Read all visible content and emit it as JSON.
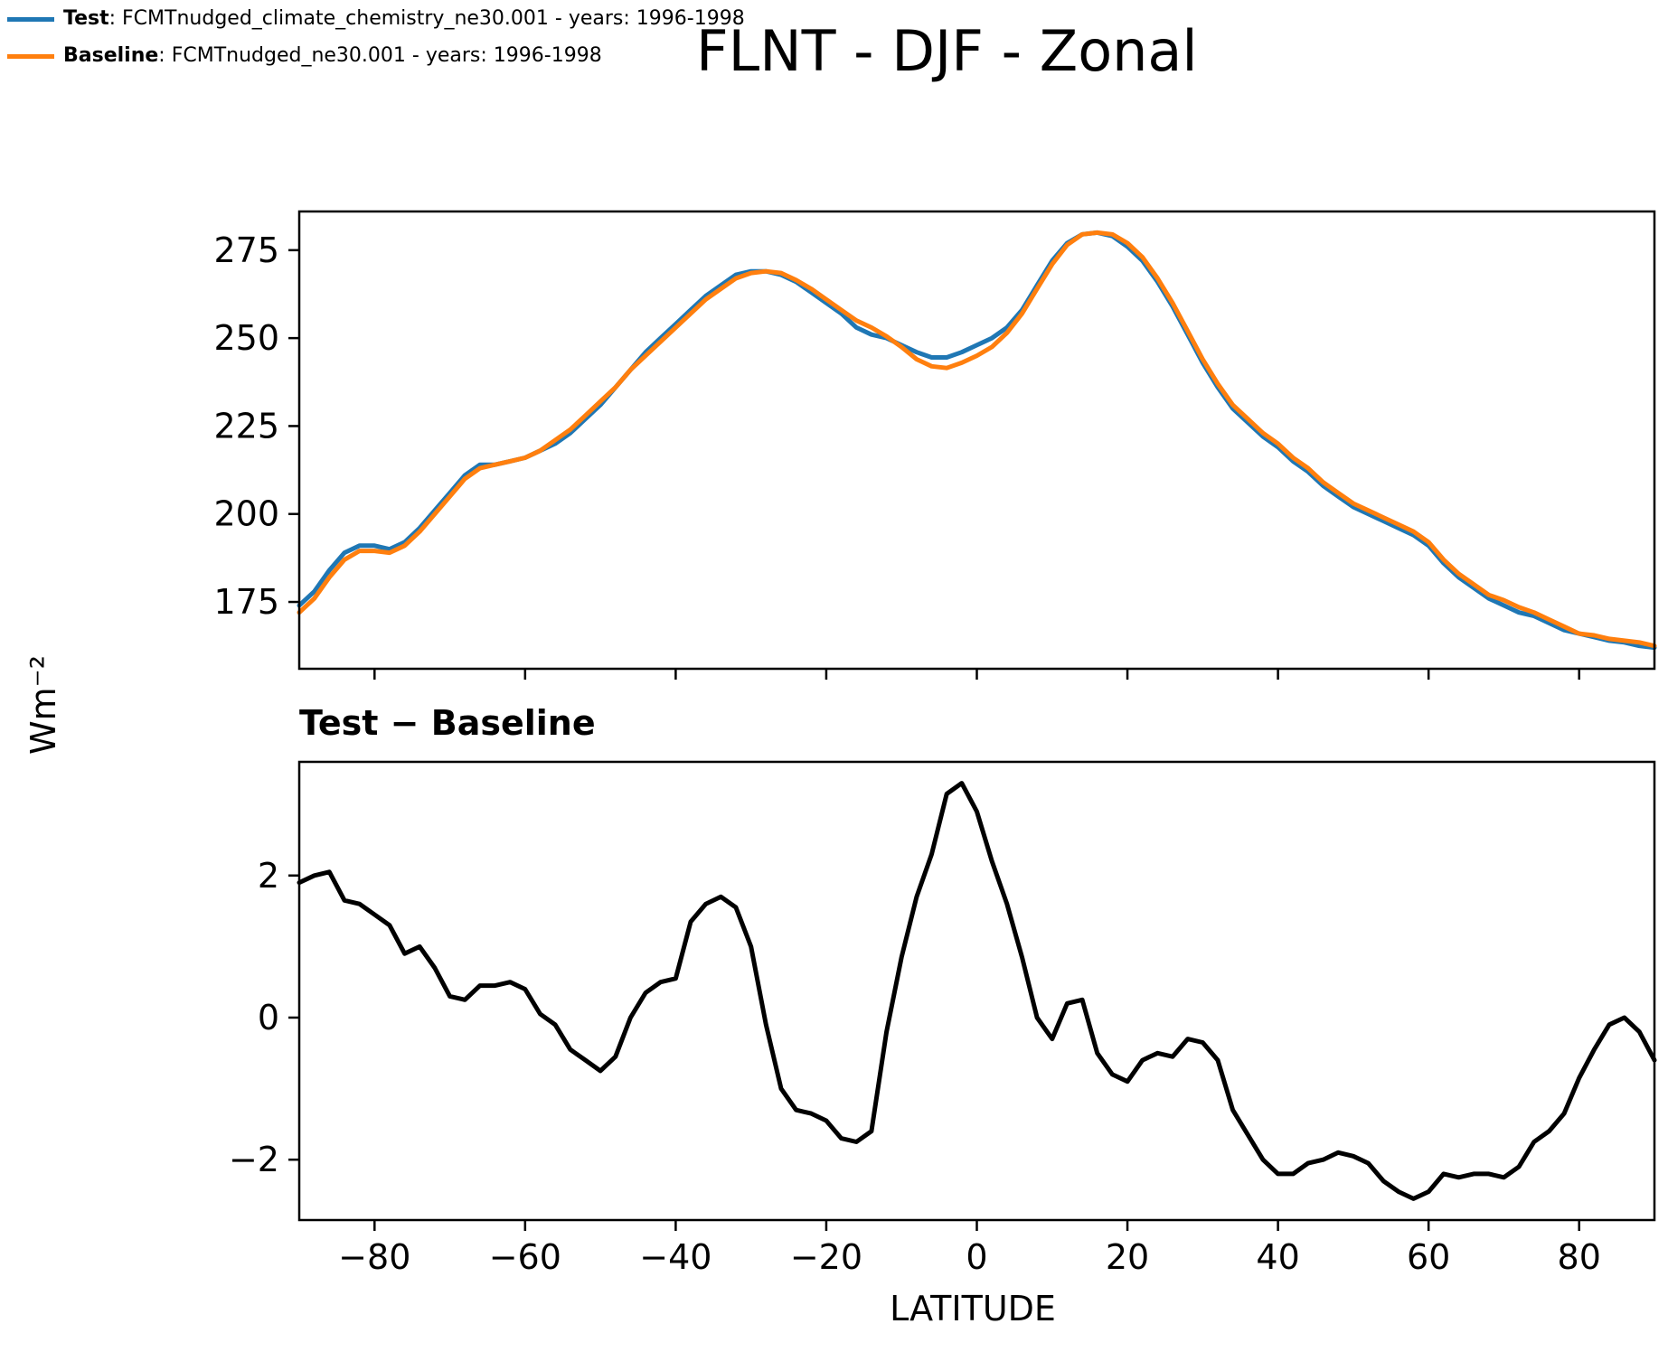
{
  "title": "FLNT - DJF - Zonal",
  "legend": [
    {
      "name": "Test",
      "text": ": FCMTnudged_climate_chemistry_ne30.001 - years: 1996-1998",
      "color": "#1f77b4"
    },
    {
      "name": "Baseline",
      "text": ": FCMTnudged_ne30.001 - years: 1996-1998",
      "color": "#ff7f0e"
    }
  ],
  "diff_title": "Test − Baseline",
  "ylabel": "Wm⁻²",
  "xlabel": "LATITUDE",
  "chart_data": [
    {
      "type": "line",
      "title": "",
      "xlabel": "LATITUDE",
      "ylabel": "Wm⁻²",
      "xlim": [
        -90,
        90
      ],
      "ylim": [
        156,
        286
      ],
      "yticks": [
        175,
        200,
        225,
        250,
        275
      ],
      "xticks": [
        -80,
        -60,
        -40,
        -20,
        0,
        20,
        40,
        60,
        80
      ],
      "series": [
        {
          "name": "Test",
          "color": "#1f77b4",
          "x": [
            -90,
            -88,
            -86,
            -84,
            -82,
            -80,
            -78,
            -76,
            -74,
            -72,
            -70,
            -68,
            -66,
            -64,
            -62,
            -60,
            -58,
            -56,
            -54,
            -52,
            -50,
            -48,
            -46,
            -44,
            -42,
            -40,
            -38,
            -36,
            -34,
            -32,
            -30,
            -28,
            -26,
            -24,
            -22,
            -20,
            -18,
            -16,
            -14,
            -12,
            -10,
            -8,
            -6,
            -4,
            -2,
            0,
            2,
            4,
            6,
            8,
            10,
            12,
            14,
            16,
            18,
            20,
            22,
            24,
            26,
            28,
            30,
            32,
            34,
            36,
            38,
            40,
            42,
            44,
            46,
            48,
            50,
            52,
            54,
            56,
            58,
            60,
            62,
            64,
            66,
            68,
            70,
            72,
            74,
            76,
            78,
            80,
            82,
            84,
            86,
            88,
            90
          ],
          "y": [
            174,
            178,
            184,
            189,
            191,
            191,
            190,
            192,
            196,
            201,
            206,
            211,
            214,
            214,
            215,
            216,
            218,
            220,
            223,
            227,
            231,
            236,
            241,
            246,
            250,
            254,
            258,
            262,
            265,
            268,
            269,
            269,
            268,
            266,
            263,
            260,
            257,
            253,
            251,
            250,
            248,
            246,
            244.5,
            244.5,
            246,
            248,
            250,
            253,
            258,
            265,
            272,
            277,
            279.5,
            280,
            279,
            276,
            272,
            266,
            259,
            251,
            243,
            236,
            230,
            226,
            222,
            219,
            215,
            212,
            208,
            205,
            202,
            200,
            198,
            196,
            194,
            191,
            186,
            182,
            179,
            176,
            174,
            172,
            171,
            169,
            167,
            166,
            165,
            164,
            163.5,
            162.5,
            162
          ]
        },
        {
          "name": "Baseline",
          "color": "#ff7f0e",
          "x": [
            -90,
            -88,
            -86,
            -84,
            -82,
            -80,
            -78,
            -76,
            -74,
            -72,
            -70,
            -68,
            -66,
            -64,
            -62,
            -60,
            -58,
            -56,
            -54,
            -52,
            -50,
            -48,
            -46,
            -44,
            -42,
            -40,
            -38,
            -36,
            -34,
            -32,
            -30,
            -28,
            -26,
            -24,
            -22,
            -20,
            -18,
            -16,
            -14,
            -12,
            -10,
            -8,
            -6,
            -4,
            -2,
            0,
            2,
            4,
            6,
            8,
            10,
            12,
            14,
            16,
            18,
            20,
            22,
            24,
            26,
            28,
            30,
            32,
            34,
            36,
            38,
            40,
            42,
            44,
            46,
            48,
            50,
            52,
            54,
            56,
            58,
            60,
            62,
            64,
            66,
            68,
            70,
            72,
            74,
            76,
            78,
            80,
            82,
            84,
            86,
            88,
            90
          ],
          "y": [
            172,
            176,
            182,
            187,
            189.5,
            189.5,
            189,
            191,
            195,
            200,
            205,
            210,
            213,
            214,
            215,
            216,
            218,
            221,
            224,
            228,
            232,
            236,
            241,
            245,
            249,
            253,
            257,
            261,
            264,
            267,
            268.5,
            269,
            268.5,
            266.5,
            264,
            261,
            258,
            255,
            253,
            250.5,
            247.5,
            244,
            242,
            241.5,
            243,
            245,
            247.5,
            251.5,
            257,
            264,
            271,
            276.5,
            279.5,
            280,
            279.5,
            277,
            273,
            267,
            260,
            252,
            244,
            237,
            231,
            227,
            223,
            220,
            216,
            213,
            209,
            206,
            203,
            201,
            199,
            197,
            195,
            192,
            187,
            183,
            180,
            177,
            175.5,
            173.5,
            172,
            170,
            168,
            166,
            165.5,
            164.5,
            164,
            163.5,
            162.5
          ]
        }
      ]
    },
    {
      "type": "line",
      "title": "Test − Baseline",
      "xlabel": "LATITUDE",
      "ylabel": "Wm⁻²",
      "xlim": [
        -90,
        90
      ],
      "ylim": [
        -2.85,
        3.6
      ],
      "yticks": [
        -2,
        0,
        2
      ],
      "xticks": [
        -80,
        -60,
        -40,
        -20,
        0,
        20,
        40,
        60,
        80
      ],
      "series": [
        {
          "name": "Test − Baseline",
          "color": "#000000",
          "x": [
            -90,
            -88,
            -86,
            -84,
            -82,
            -80,
            -78,
            -76,
            -74,
            -72,
            -70,
            -68,
            -66,
            -64,
            -62,
            -60,
            -58,
            -56,
            -54,
            -52,
            -50,
            -48,
            -46,
            -44,
            -42,
            -40,
            -38,
            -36,
            -34,
            -32,
            -30,
            -28,
            -26,
            -24,
            -22,
            -20,
            -18,
            -16,
            -14,
            -12,
            -10,
            -8,
            -6,
            -4,
            -2,
            0,
            2,
            4,
            6,
            8,
            10,
            12,
            14,
            16,
            18,
            20,
            22,
            24,
            26,
            28,
            30,
            32,
            34,
            36,
            38,
            40,
            42,
            44,
            46,
            48,
            50,
            52,
            54,
            56,
            58,
            60,
            62,
            64,
            66,
            68,
            70,
            72,
            74,
            76,
            78,
            80,
            82,
            84,
            86,
            88,
            90
          ],
          "y": [
            1.9,
            2.0,
            2.05,
            1.65,
            1.6,
            1.45,
            1.3,
            0.9,
            1.0,
            0.7,
            0.3,
            0.25,
            0.45,
            0.45,
            0.5,
            0.4,
            0.05,
            -0.1,
            -0.45,
            -0.6,
            -0.75,
            -0.55,
            0.0,
            0.35,
            0.5,
            0.55,
            1.35,
            1.6,
            1.7,
            1.55,
            1.0,
            -0.1,
            -1.0,
            -1.3,
            -1.35,
            -1.45,
            -1.7,
            -1.75,
            -1.6,
            -0.2,
            0.85,
            1.7,
            2.3,
            3.15,
            3.3,
            2.9,
            2.2,
            1.6,
            0.85,
            0.0,
            -0.3,
            0.2,
            0.25,
            -0.5,
            -0.8,
            -0.9,
            -0.6,
            -0.5,
            -0.55,
            -0.3,
            -0.35,
            -0.6,
            -1.3,
            -1.65,
            -2.0,
            -2.2,
            -2.2,
            -2.05,
            -2.0,
            -1.9,
            -1.95,
            -2.05,
            -2.3,
            -2.45,
            -2.55,
            -2.45,
            -2.2,
            -2.25,
            -2.2,
            -2.2,
            -2.25,
            -2.1,
            -1.75,
            -1.6,
            -1.35,
            -0.85,
            -0.45,
            -0.1,
            0.0,
            -0.2,
            -0.6
          ]
        }
      ]
    }
  ]
}
